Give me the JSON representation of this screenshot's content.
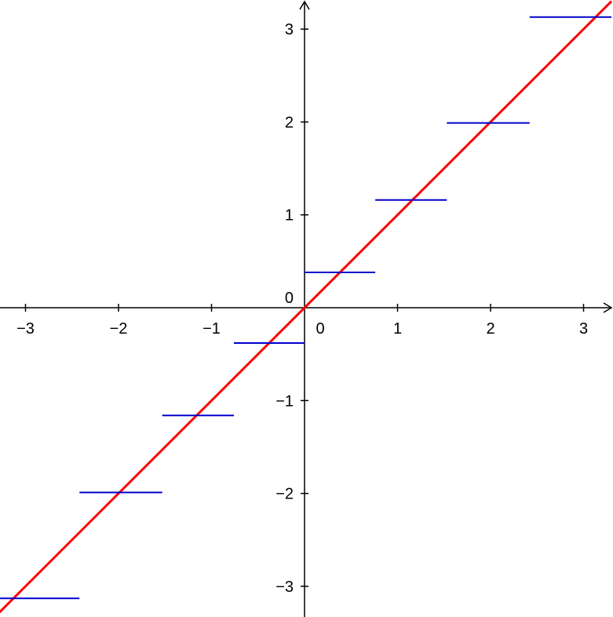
{
  "chart_data": {
    "type": "line",
    "title": "",
    "xlabel": "",
    "ylabel": "",
    "xlim": [
      -3.3,
      3.3
    ],
    "ylim": [
      -3.3,
      3.3
    ],
    "grid": false,
    "origin_label": "0",
    "x_ticks": [
      {
        "value": -3,
        "label": "−3"
      },
      {
        "value": -2,
        "label": "−2"
      },
      {
        "value": -1,
        "label": "−1"
      },
      {
        "value": 0,
        "label": "0"
      },
      {
        "value": 1,
        "label": "1"
      },
      {
        "value": 2,
        "label": "2"
      },
      {
        "value": 3,
        "label": "3"
      }
    ],
    "y_ticks": [
      {
        "value": -3,
        "label": "−3"
      },
      {
        "value": -2,
        "label": "−2"
      },
      {
        "value": -1,
        "label": "−1"
      },
      {
        "value": 1,
        "label": "1"
      },
      {
        "value": 2,
        "label": "2"
      },
      {
        "value": 3,
        "label": "3"
      }
    ],
    "series": [
      {
        "color": "#ff0000",
        "kind": "line",
        "x": [
          -3.3,
          3.3
        ],
        "y": [
          -3.3,
          3.3
        ]
      },
      {
        "color": "#0000cc",
        "kind": "step",
        "segments": [
          {
            "x0": -3.3,
            "x1": -2.42,
            "y": -3.13
          },
          {
            "x0": -2.42,
            "x1": -1.53,
            "y": -1.99
          },
          {
            "x0": -1.53,
            "x1": -0.76,
            "y": -1.16
          },
          {
            "x0": -0.76,
            "x1": 0.0,
            "y": -0.38
          },
          {
            "x0": 0.0,
            "x1": 0.76,
            "y": 0.38
          },
          {
            "x0": 0.76,
            "x1": 1.53,
            "y": 1.16
          },
          {
            "x0": 1.53,
            "x1": 2.42,
            "y": 1.99
          },
          {
            "x0": 2.42,
            "x1": 3.3,
            "y": 3.13
          }
        ]
      }
    ]
  }
}
